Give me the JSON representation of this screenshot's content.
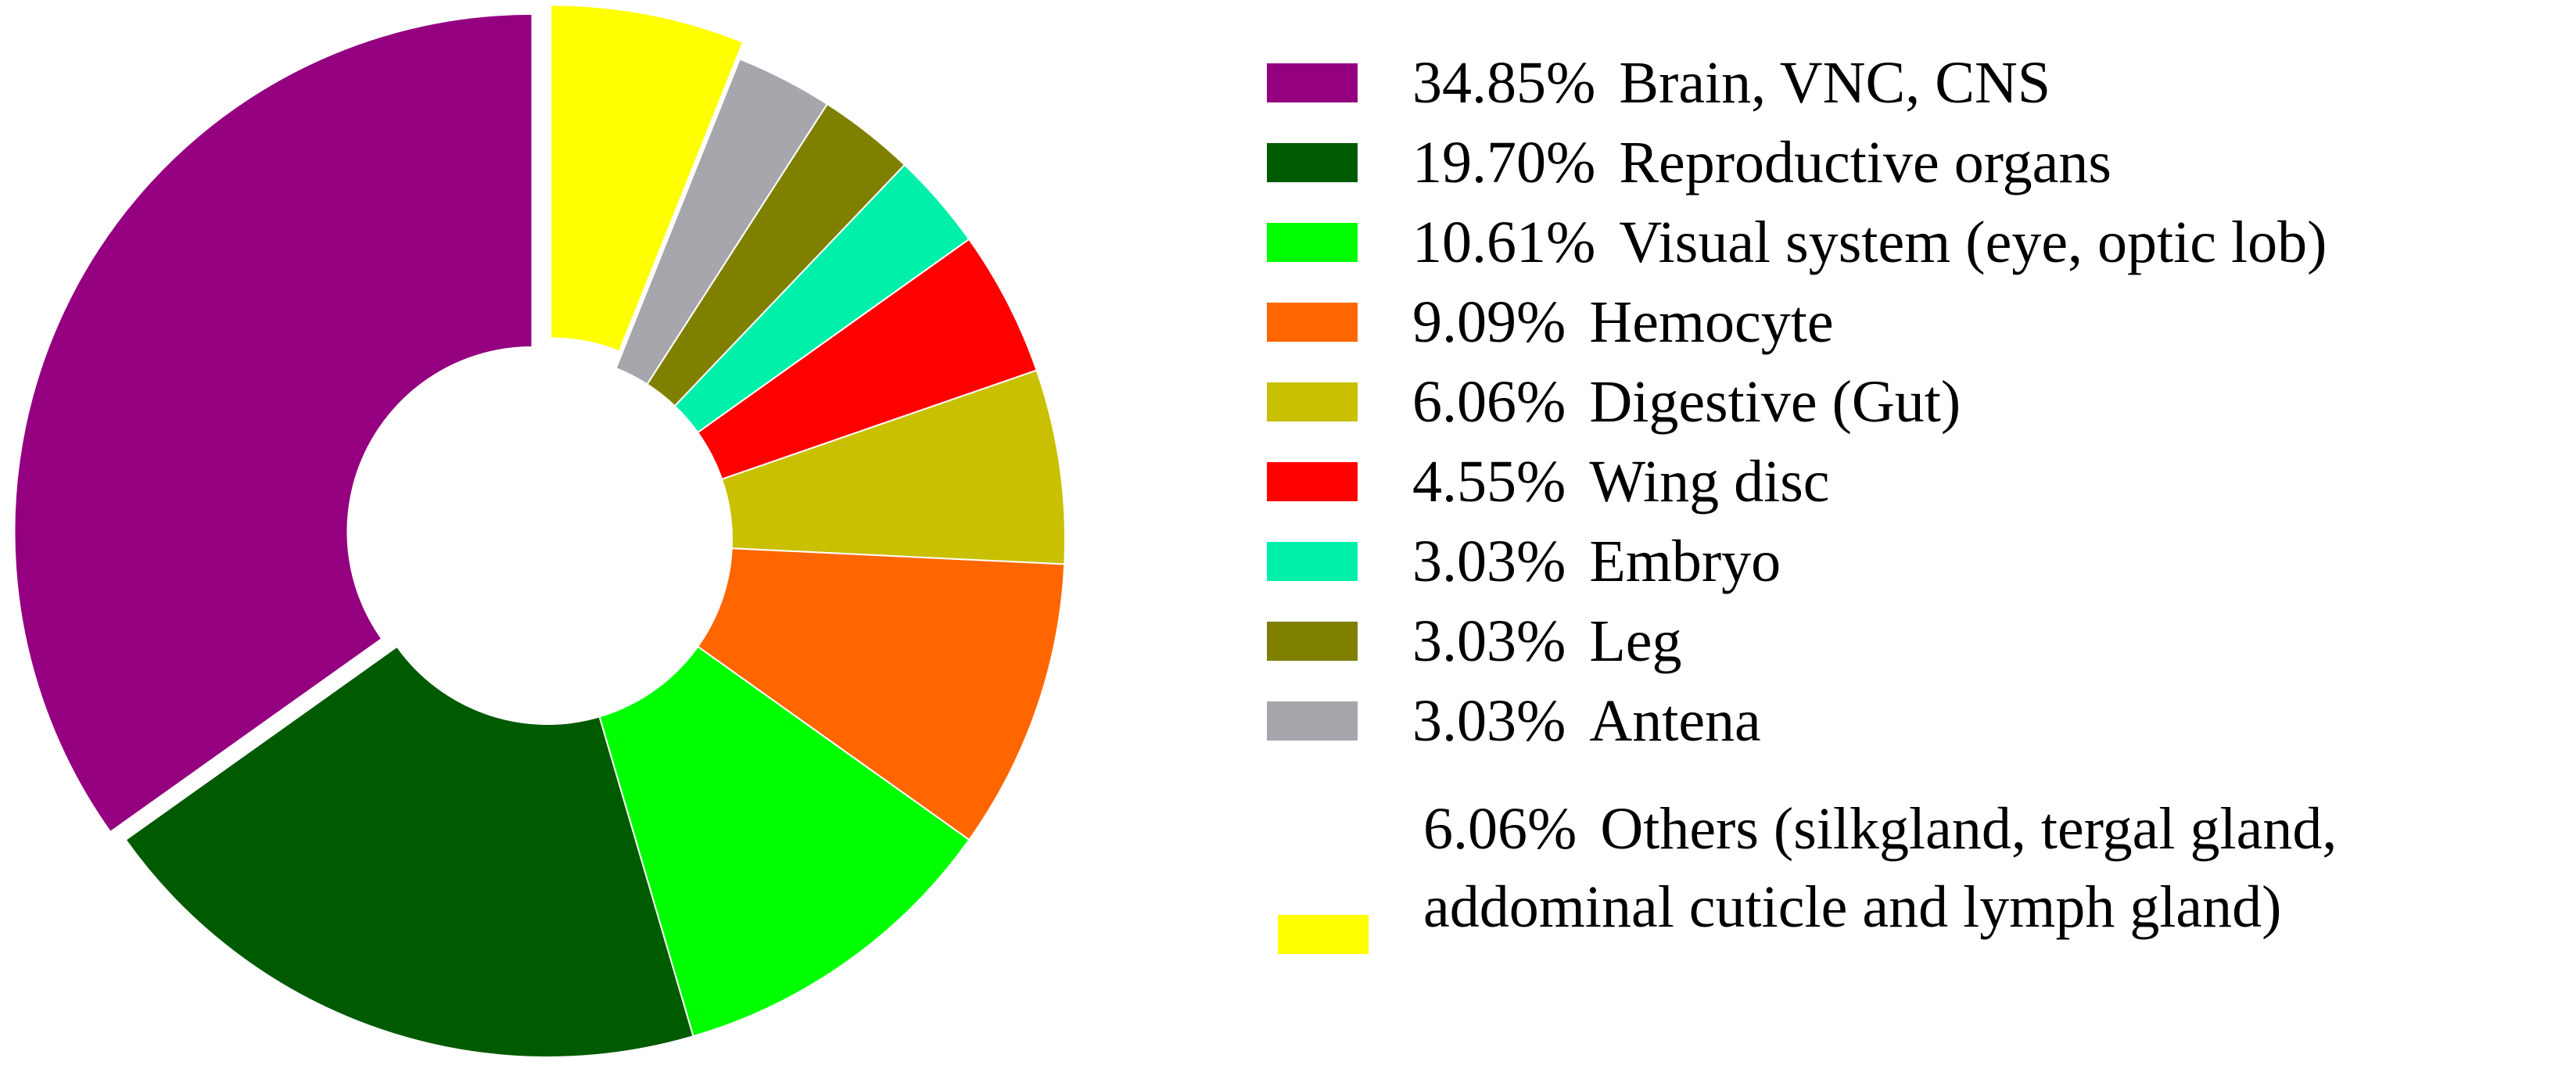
{
  "chart_data": {
    "type": "pie",
    "donut": true,
    "title": "",
    "legend_placement": "right",
    "slices": [
      {
        "value": 34.85,
        "pct_label": "34.85%",
        "label": "Brain, VNC, CNS",
        "color": "#940080",
        "exploded": true
      },
      {
        "value": 19.7,
        "pct_label": "19.70%",
        "label": "Reproductive organs",
        "color": "#005A00"
      },
      {
        "value": 10.61,
        "pct_label": "10.61%",
        "label": "Visual system (eye, optic lob)",
        "color": "#00FF00"
      },
      {
        "value": 9.09,
        "pct_label": "9.09%",
        "label": "Hemocyte",
        "color": "#FF6600"
      },
      {
        "value": 6.06,
        "pct_label": "6.06%",
        "label": "Digestive (Gut)",
        "color": "#C8C000"
      },
      {
        "value": 4.55,
        "pct_label": "4.55%",
        "label": "Wing disc",
        "color": "#FF0000"
      },
      {
        "value": 3.03,
        "pct_label": "3.03%",
        "label": "Embryo",
        "color": "#00F0AA"
      },
      {
        "value": 3.03,
        "pct_label": "3.03%",
        "label": "Leg",
        "color": "#808000"
      },
      {
        "value": 3.03,
        "pct_label": "3.03%",
        "label": "Antena",
        "color": "#A6A6AC"
      },
      {
        "value": 6.06,
        "pct_label": "6.06%",
        "label": "Others (silkgland, tergal gland, addominal cuticle and lymph gland)",
        "color": "#FFFF00",
        "exploded": true
      }
    ]
  }
}
